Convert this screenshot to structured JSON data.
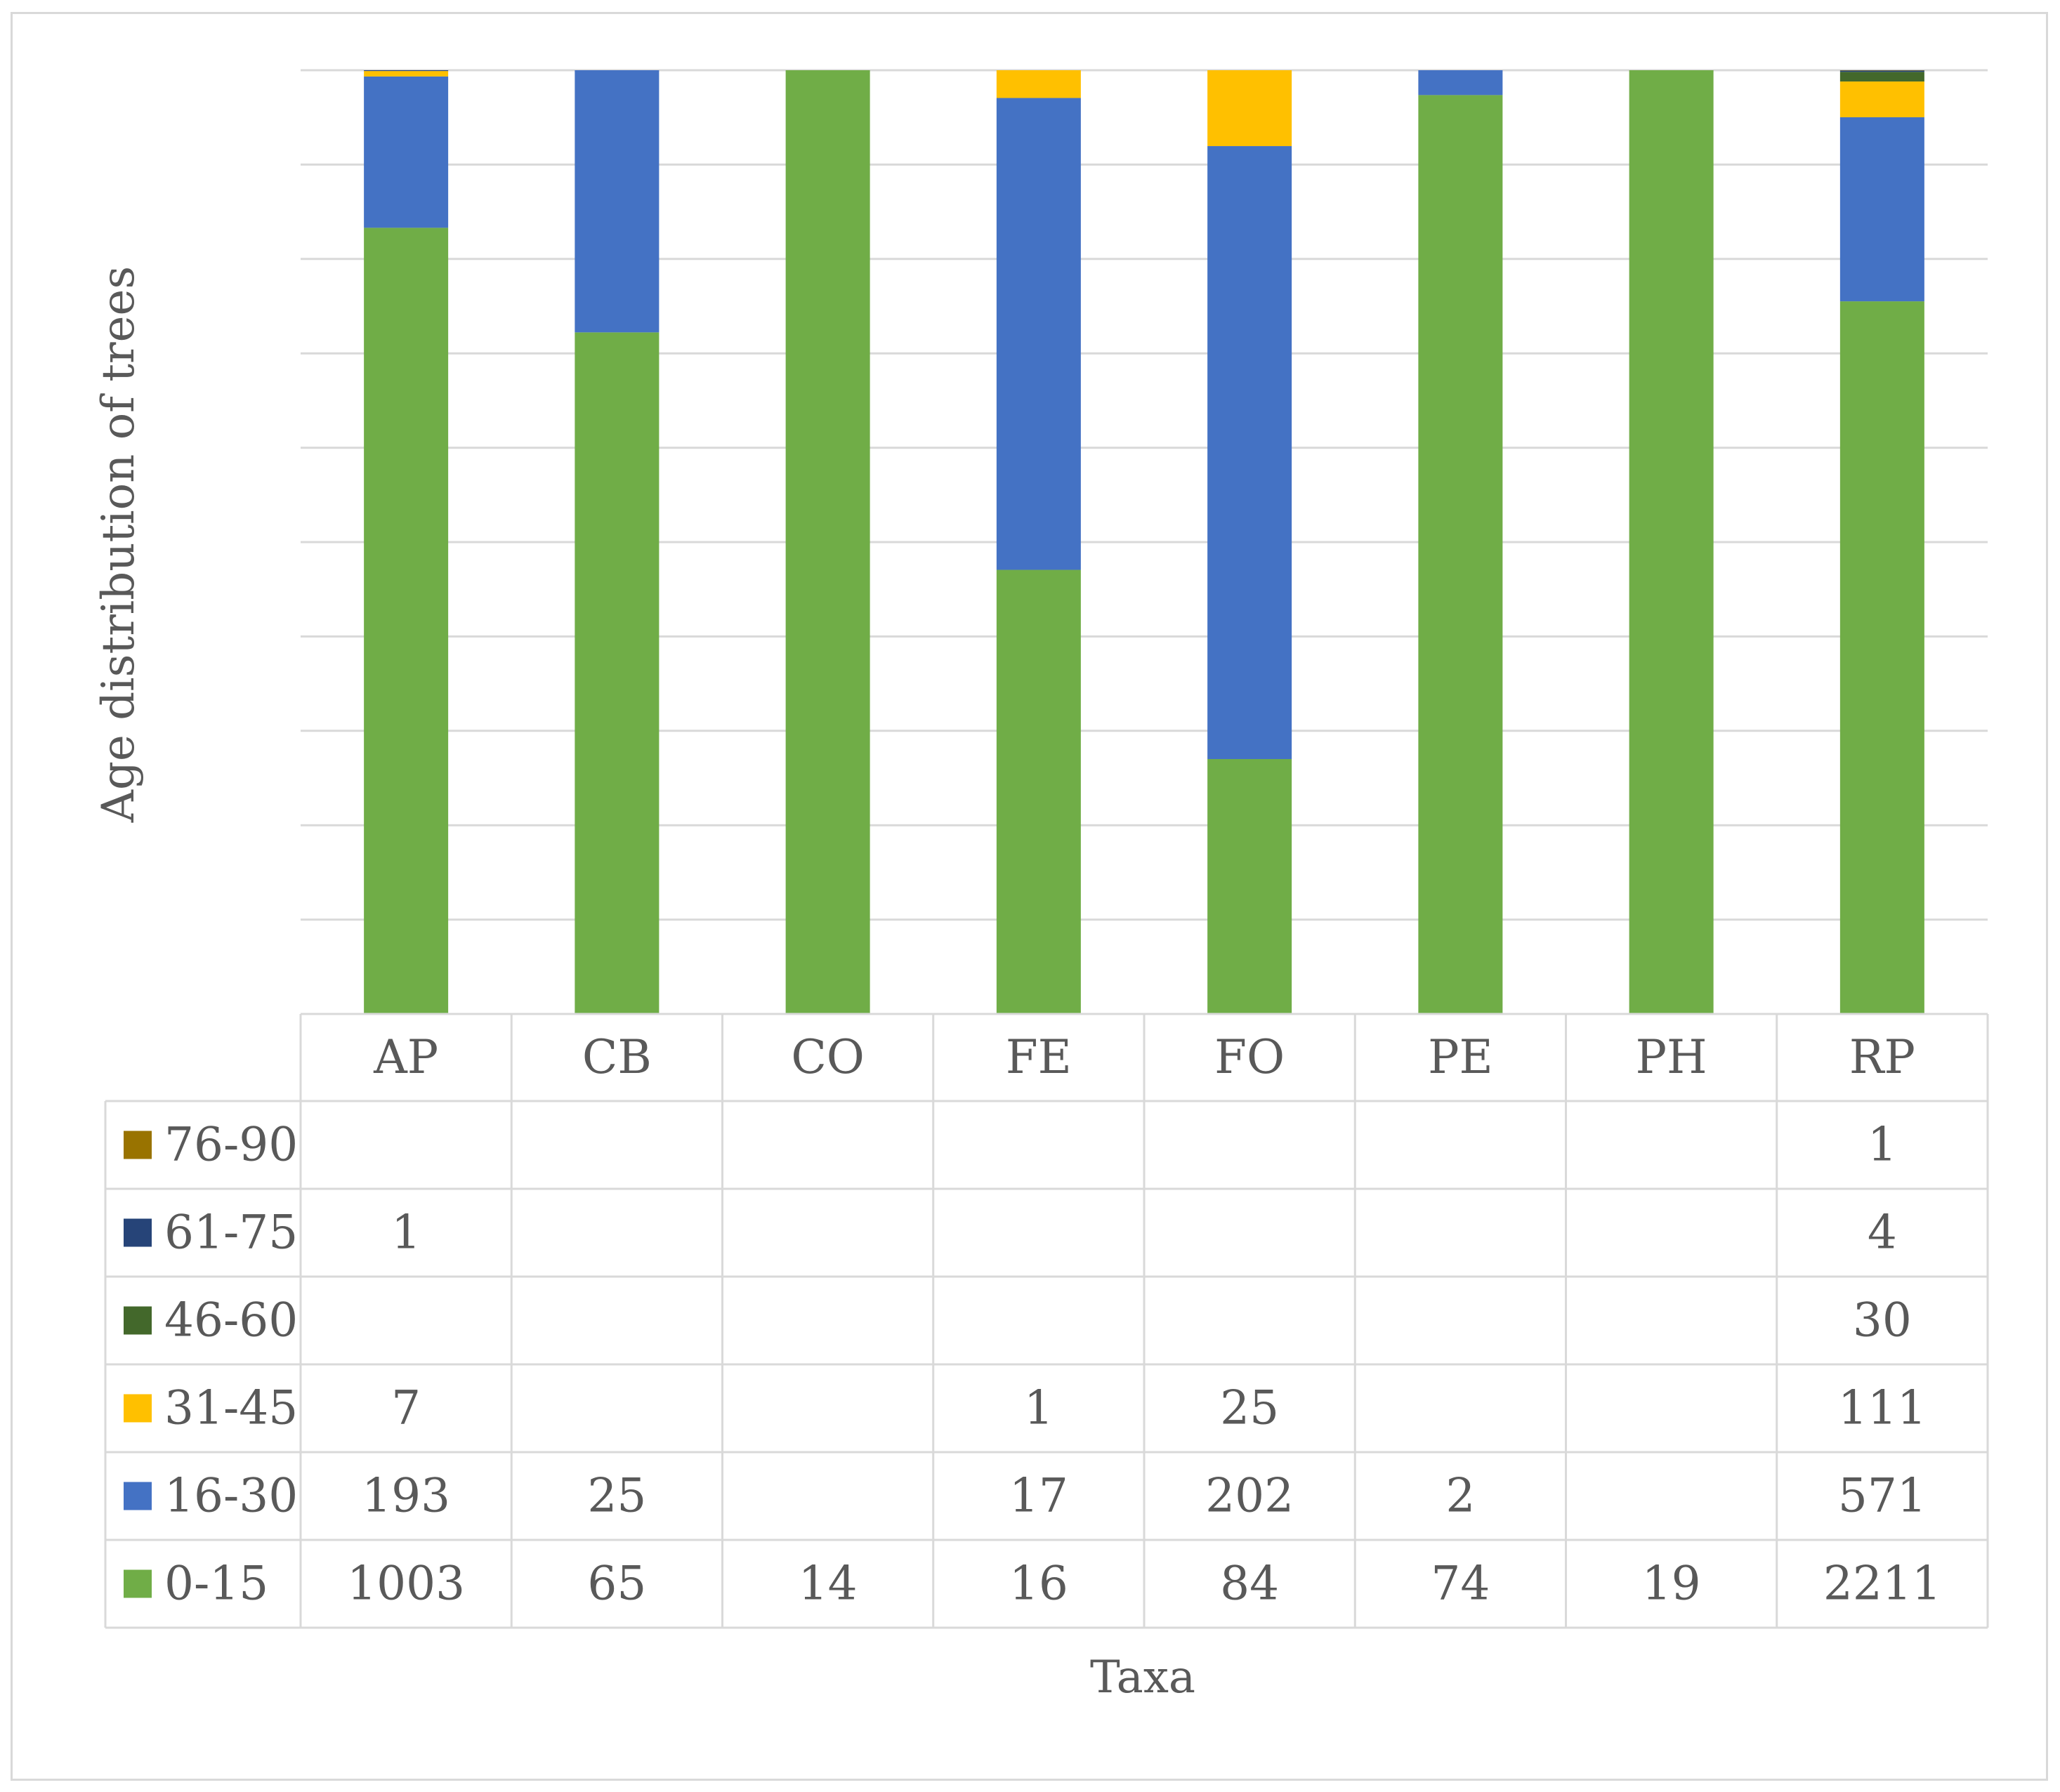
{
  "chart_data": {
    "type": "bar",
    "stacked": true,
    "normalized": true,
    "categories": [
      "AP",
      "CB",
      "CO",
      "FE",
      "FO",
      "PE",
      "PH",
      "RP"
    ],
    "series": [
      {
        "name": "0-15",
        "color": "#70ad47",
        "values": [
          1003,
          65,
          14,
          16,
          84,
          74,
          19,
          2211
        ]
      },
      {
        "name": "16-30",
        "color": "#4472c4",
        "values": [
          193,
          25,
          null,
          17,
          202,
          2,
          null,
          571
        ]
      },
      {
        "name": "31-45",
        "color": "#ffc000",
        "values": [
          7,
          null,
          null,
          1,
          25,
          null,
          null,
          111
        ]
      },
      {
        "name": "46-60",
        "color": "#43682b",
        "values": [
          null,
          null,
          null,
          null,
          null,
          null,
          null,
          30
        ]
      },
      {
        "name": "61-75",
        "color": "#264478",
        "values": [
          1,
          null,
          null,
          null,
          null,
          null,
          null,
          4
        ]
      },
      {
        "name": "76-90",
        "color": "#997300",
        "values": [
          null,
          null,
          null,
          null,
          null,
          null,
          null,
          1
        ]
      }
    ],
    "xlabel": "Taxa",
    "ylabel": "Age distribution of trees",
    "grid": true,
    "legend": "data-table",
    "data_table": true
  }
}
